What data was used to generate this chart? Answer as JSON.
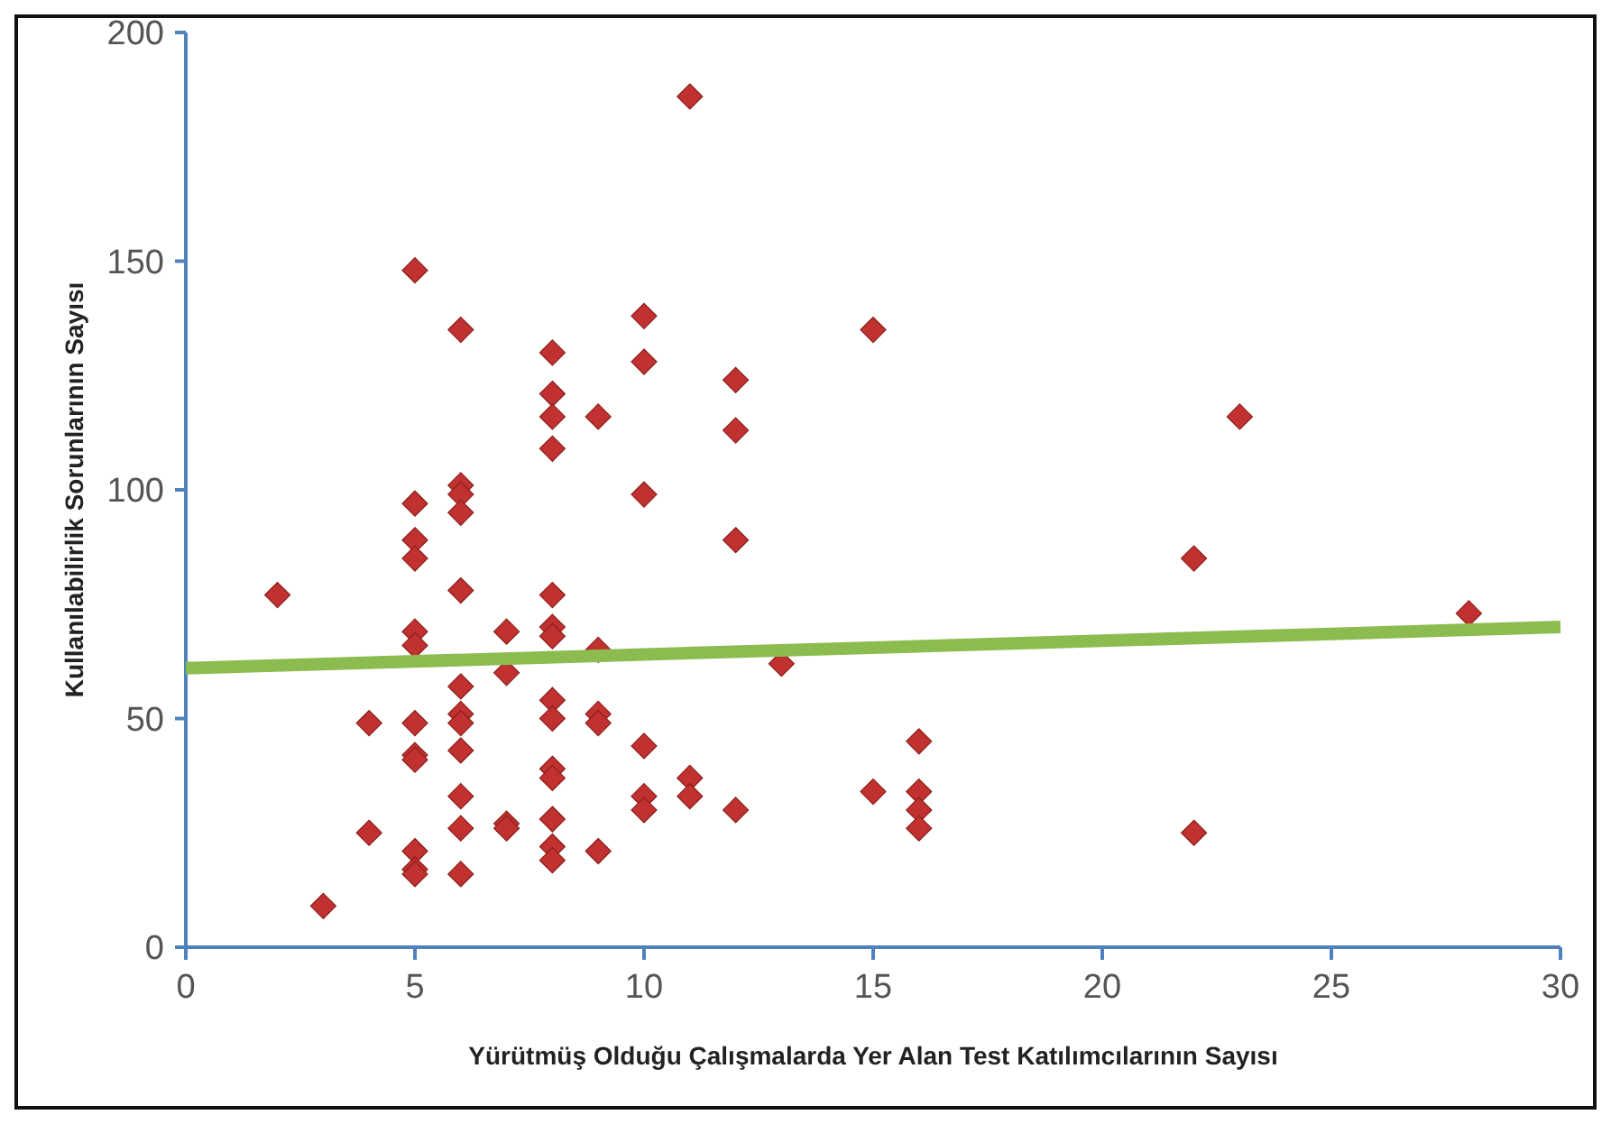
{
  "chart_data": {
    "type": "scatter",
    "xlabel": "Yürütmüş Olduğu Çalışmalarda Yer Alan Test Katılımcılarının Sayısı",
    "ylabel": "Kullanılabilirlik Sorunlarının Sayısı",
    "xlim": [
      0,
      30
    ],
    "ylim": [
      0,
      200
    ],
    "xticks": [
      0,
      5,
      10,
      15,
      20,
      25,
      30
    ],
    "yticks": [
      0,
      50,
      100,
      150,
      200
    ],
    "marker": "diamond",
    "grid": false,
    "series": [
      {
        "color": "#c0312f",
        "x": [
          2,
          3,
          4,
          4,
          5,
          5,
          5,
          5,
          5,
          5,
          5,
          5,
          5,
          5,
          5,
          5,
          6,
          6,
          6,
          6,
          6,
          6,
          6,
          6,
          6,
          6,
          6,
          6,
          7,
          7,
          7,
          7,
          8,
          8,
          8,
          8,
          8,
          8,
          8,
          8,
          8,
          8,
          8,
          8,
          8,
          8,
          9,
          9,
          9,
          9,
          9,
          10,
          10,
          10,
          10,
          10,
          10,
          11,
          11,
          11,
          12,
          12,
          12,
          12,
          13,
          15,
          15,
          16,
          16,
          16,
          16,
          22,
          22,
          23,
          28
        ],
        "values": [
          77,
          9,
          49,
          25,
          148,
          97,
          89,
          85,
          69,
          66,
          49,
          42,
          41,
          21,
          17,
          16,
          135,
          101,
          99,
          95,
          78,
          57,
          51,
          49,
          43,
          33,
          26,
          16,
          69,
          60,
          27,
          26,
          130,
          121,
          116,
          109,
          77,
          70,
          68,
          54,
          50,
          39,
          37,
          28,
          22,
          19,
          116,
          65,
          51,
          49,
          21,
          138,
          128,
          99,
          44,
          33,
          30,
          186,
          37,
          33,
          124,
          113,
          89,
          30,
          62,
          135,
          34,
          45,
          34,
          30,
          26,
          85,
          25,
          116,
          73
        ]
      },
      {
        "type": "line",
        "marker": "none",
        "color": "#8cbc4f",
        "x": [
          0,
          30
        ],
        "values": [
          61,
          70
        ]
      }
    ]
  }
}
